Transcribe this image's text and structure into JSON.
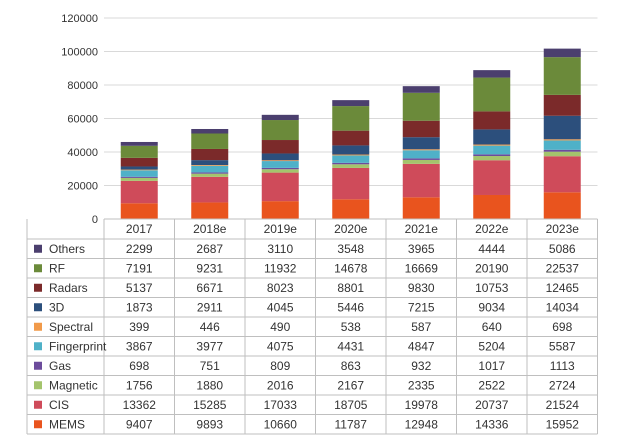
{
  "chart_data": {
    "type": "bar",
    "stacked": true,
    "categories": [
      "2017",
      "2018e",
      "2019e",
      "2020e",
      "2021e",
      "2022e",
      "2023e"
    ],
    "ylim": [
      0,
      120000
    ],
    "yticks": [
      0,
      20000,
      40000,
      60000,
      80000,
      100000,
      120000
    ],
    "ytick_labels": [
      "0",
      "20000",
      "40000",
      "60000",
      "80000",
      "100000",
      "120000"
    ],
    "grid": true,
    "legend_position": "table-left",
    "series": [
      {
        "name": "MEMS",
        "color": "#e9541e",
        "values": [
          9407,
          9893,
          10660,
          11787,
          12948,
          14336,
          15952
        ],
        "labels": [
          "9407",
          "9893",
          "10660",
          "11787",
          "12948",
          "14336",
          "15952"
        ]
      },
      {
        "name": "CIS",
        "color": "#cf4b5a",
        "values": [
          13362,
          15285,
          17033,
          18705,
          19978,
          20737,
          21524
        ],
        "labels": [
          "13362",
          "15285",
          "17033",
          "18705",
          "19978",
          "20737",
          "21524"
        ]
      },
      {
        "name": "Magnetic",
        "color": "#a4c46c",
        "values": [
          1756,
          1880,
          2016,
          2167,
          2335,
          2522,
          2724
        ],
        "labels": [
          "1756",
          "1880",
          "2016",
          "2167",
          "2335",
          "2522",
          "2724"
        ]
      },
      {
        "name": "Gas",
        "color": "#6c4c9c",
        "values": [
          698,
          751,
          809,
          863,
          932,
          1017,
          1113
        ],
        "labels": [
          "698",
          "751",
          "809",
          "863",
          "932",
          "1017",
          "1113"
        ]
      },
      {
        "name": "Fingerprint",
        "color": "#4fb1c8",
        "values": [
          3867,
          3977,
          4075,
          4431,
          4847,
          5204,
          5587
        ],
        "labels": [
          "3867",
          "3977",
          "4075",
          "4431",
          "4847",
          "5204",
          "5587"
        ]
      },
      {
        "name": "Spectral",
        "color": "#f19a4a",
        "values": [
          399,
          446,
          490,
          538,
          587,
          640,
          698
        ],
        "labels": [
          "399",
          "446",
          "490",
          "538",
          "587",
          "640",
          "698"
        ]
      },
      {
        "name": "3D",
        "color": "#2c4f7c",
        "values": [
          1873,
          2911,
          4045,
          5446,
          7215,
          9034,
          14034
        ],
        "labels": [
          "1873",
          "2911",
          "4045",
          "5446",
          "7215",
          "9034",
          "14034"
        ]
      },
      {
        "name": "Radars",
        "color": "#7b2a2a",
        "values": [
          5137,
          6671,
          8023,
          8801,
          9830,
          10753,
          12465
        ],
        "labels": [
          "5137",
          "6671",
          "8023",
          "8801",
          "9830",
          "10753",
          "12465"
        ]
      },
      {
        "name": "RF",
        "color": "#6b8a3a",
        "values": [
          7191,
          9231,
          11932,
          14678,
          16669,
          20190,
          22537
        ],
        "labels": [
          "7191",
          "9231",
          "11932",
          "14678",
          "16669",
          "20190",
          "22537"
        ]
      },
      {
        "name": "Others",
        "color": "#4b3f6e",
        "values": [
          2299,
          2687,
          3110,
          3548,
          3965,
          4444,
          5086
        ],
        "labels": [
          "2299",
          "2687",
          "3110",
          "3548",
          "3965",
          "4444",
          "5086"
        ]
      }
    ]
  }
}
